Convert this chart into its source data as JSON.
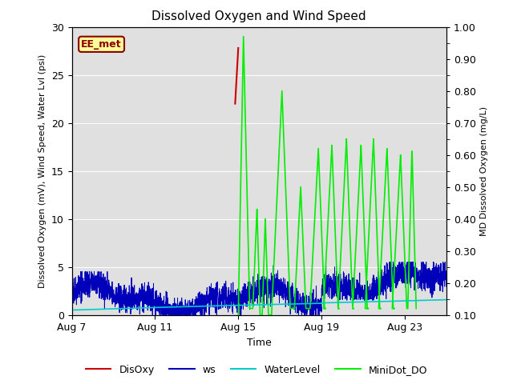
{
  "title": "Dissolved Oxygen and Wind Speed",
  "ylabel_left": "Dissolved Oxygen (mV), Wind Speed, Water Lvl (psi)",
  "ylabel_right": "MD Dissolved Oxygen (mg/L)",
  "xlabel": "Time",
  "ylim_left": [
    0,
    30
  ],
  "ylim_right": [
    0.1,
    1.0
  ],
  "yticks_left": [
    0,
    5,
    10,
    15,
    20,
    25,
    30
  ],
  "yticks_right": [
    0.1,
    0.2,
    0.3,
    0.4,
    0.5,
    0.6,
    0.7,
    0.8,
    0.9,
    1.0
  ],
  "xtick_labels": [
    "Aug 7",
    "Aug 11",
    "Aug 15",
    "Aug 19",
    "Aug 23"
  ],
  "xtick_positions": [
    0,
    4,
    8,
    12,
    16
  ],
  "xlim": [
    0,
    18
  ],
  "background_color": "#e0e0e0",
  "fig_background": "#ffffff",
  "annotation_text": "EE_met",
  "annotation_color": "#8b0000",
  "annotation_bg": "#ffff99",
  "colors": {
    "DisOxy": "#cc0000",
    "ws": "#0000bb",
    "WaterLevel": "#00cccc",
    "MiniDot_DO": "#00ee00"
  },
  "legend_labels": [
    "DisOxy",
    "ws",
    "WaterLevel",
    "MiniDot_DO"
  ],
  "right_ytick_labels": [
    "0.10",
    "0.20",
    "0.30",
    "0.40",
    "0.50",
    "0.60",
    "0.70",
    "0.80",
    "0.90",
    "1.00"
  ]
}
